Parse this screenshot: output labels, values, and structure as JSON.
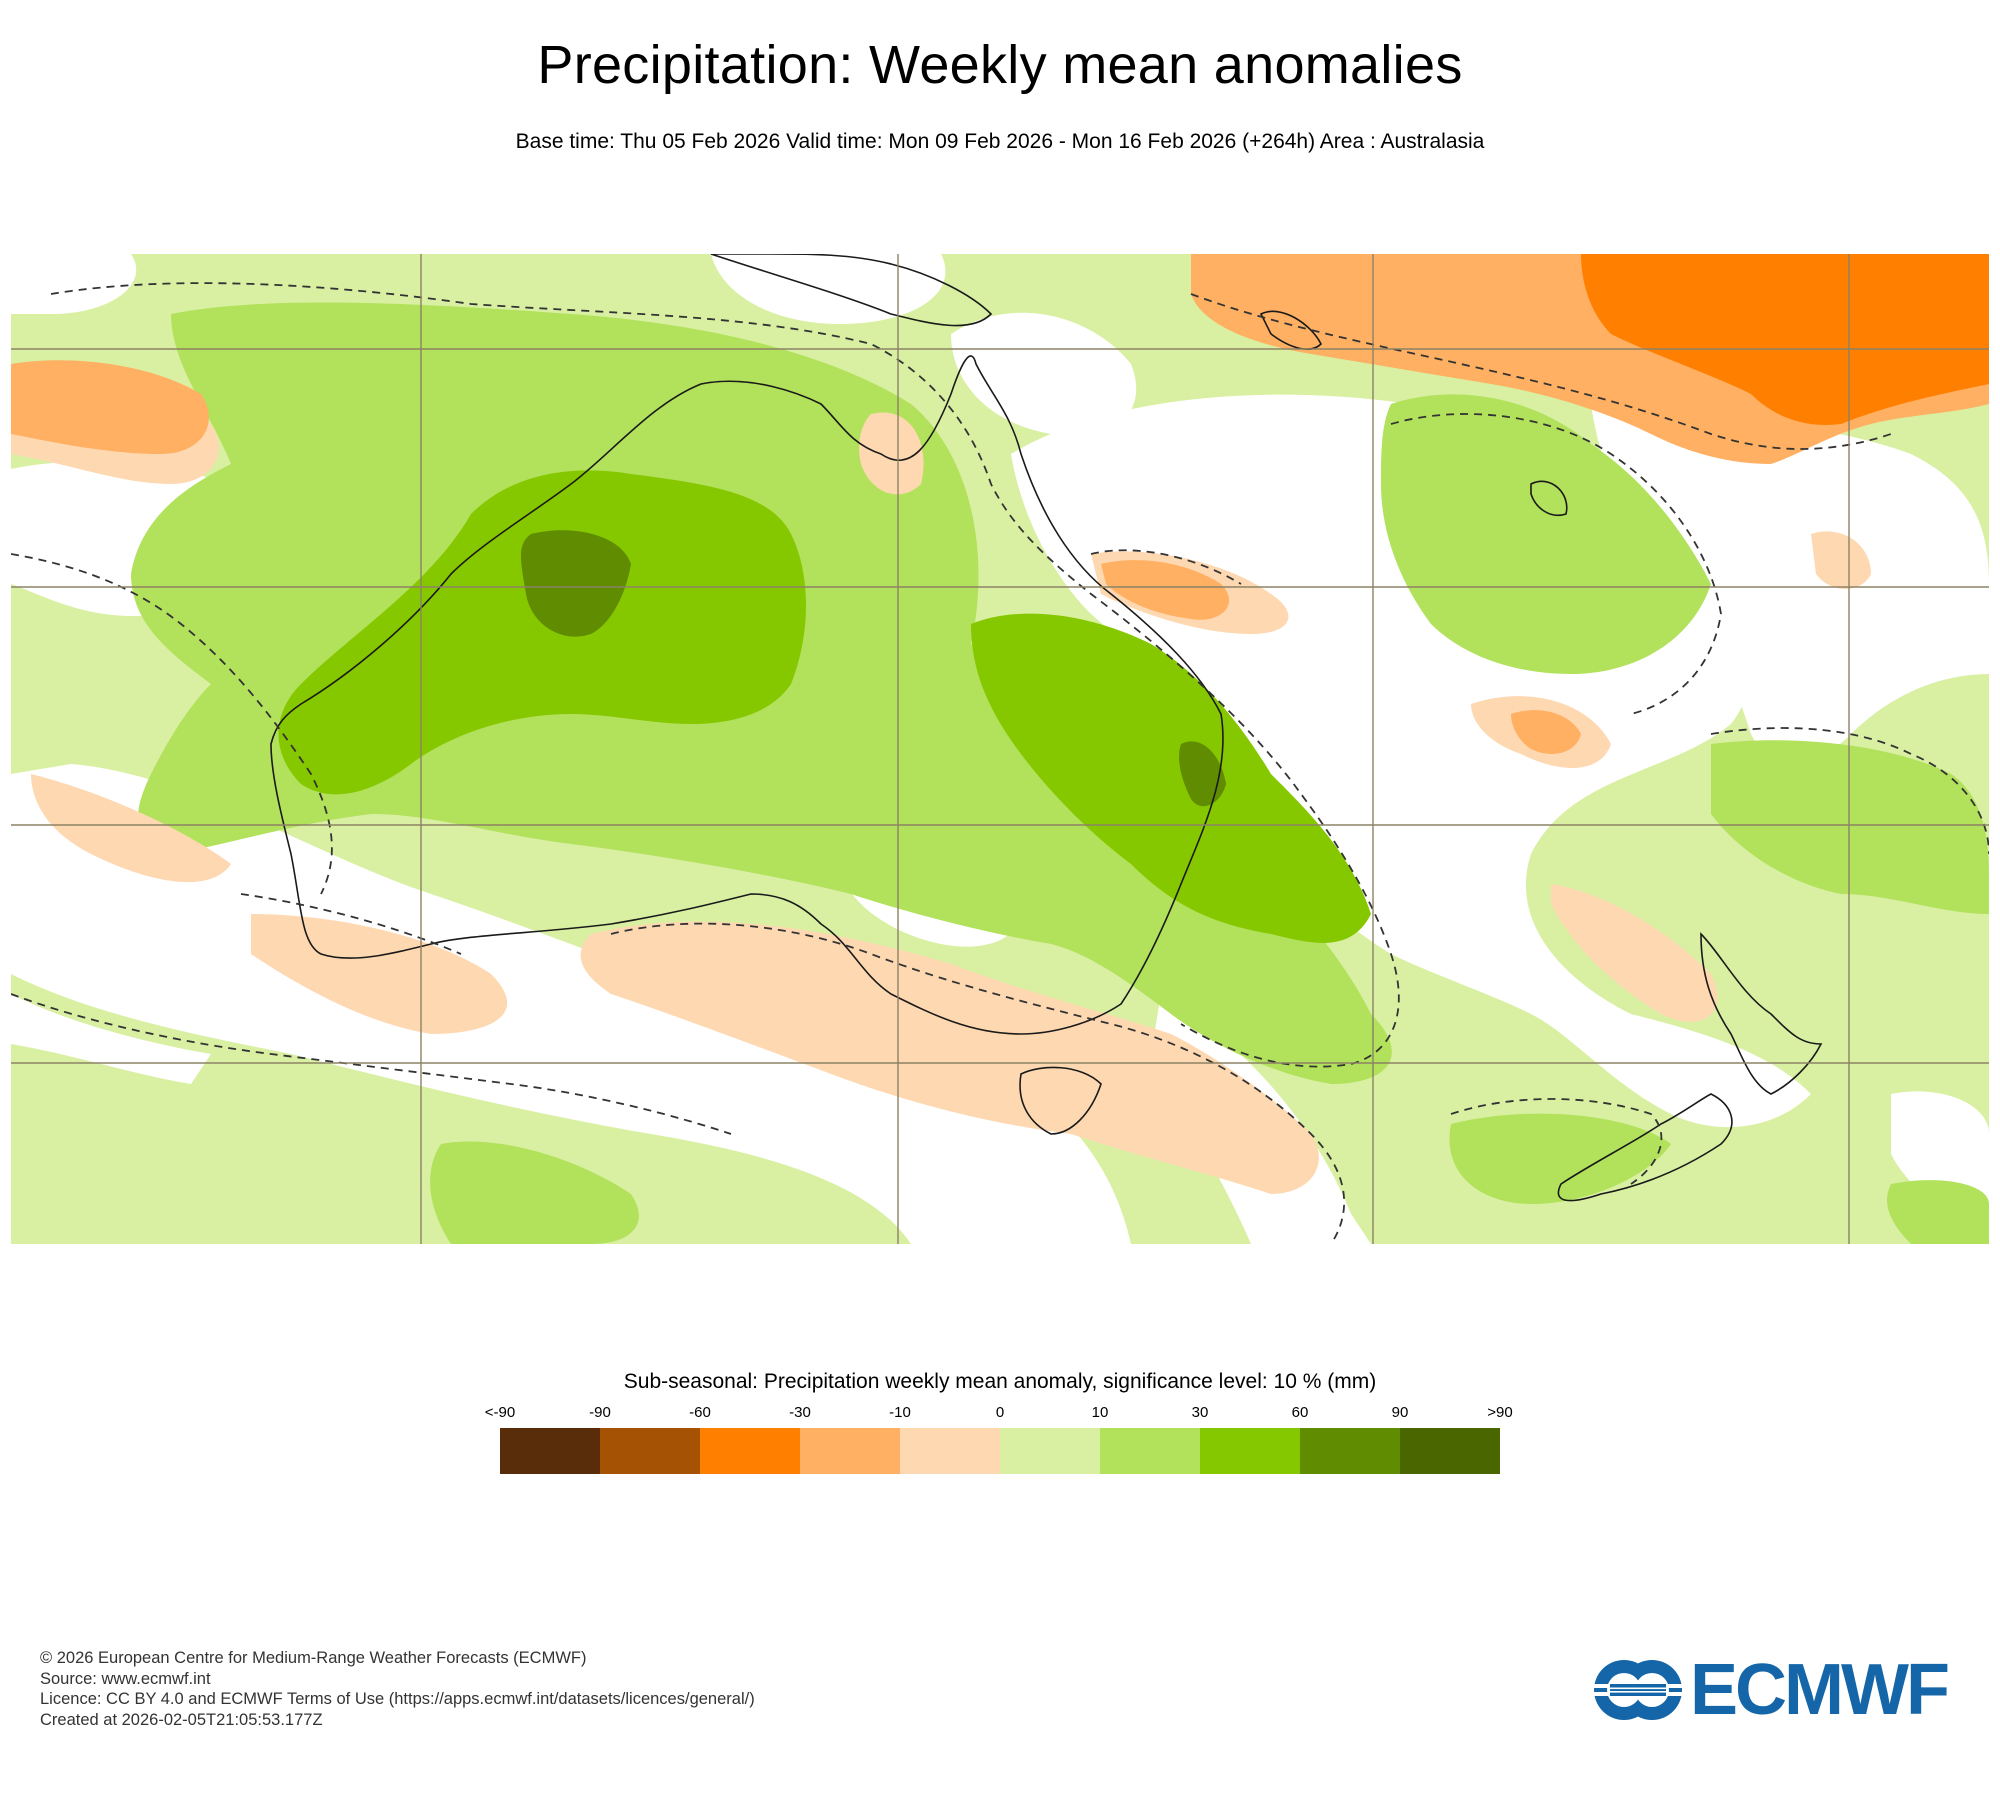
{
  "header": {
    "title": "Precipitation: Weekly mean anomalies",
    "subtitle": "Base time: Thu 05 Feb 2026 Valid time: Mon 09 Feb 2026 - Mon 16 Feb 2026 (+264h) Area : Australasia"
  },
  "legend": {
    "title": "Sub-seasonal: Precipitation weekly mean anomaly, significance level: 10 % (mm)",
    "ticks": [
      "<-90",
      "-90",
      "-60",
      "-30",
      "-10",
      "0",
      "10",
      "30",
      "60",
      "90",
      ">90"
    ],
    "colors": [
      "#5a2d0a",
      "#a65205",
      "#ff7f00",
      "#ffb062",
      "#fed8b1",
      "#d9f0a3",
      "#b2e15c",
      "#86c800",
      "#5f8c00",
      "#4a6600"
    ]
  },
  "footer": {
    "line1": "© 2026 European Centre for Medium-Range Weather Forecasts (ECMWF)",
    "line2": "Source: www.ecmwf.int",
    "line3": "Licence: CC BY 4.0 and ECMWF Terms of Use (https://apps.ecmwf.int/datasets/licences/general/)",
    "line4": "Created at 2026-02-05T21:05:53.177Z"
  },
  "logo": {
    "text": "ECMWF",
    "color": "#1566a8"
  },
  "colors": {
    "light_green": "#d9f0a3",
    "mid_green": "#b2e15c",
    "green": "#86c800",
    "dark_green": "#5f8c00",
    "peach": "#fed8b1",
    "light_orange": "#ffb062",
    "orange": "#ff7f00"
  }
}
